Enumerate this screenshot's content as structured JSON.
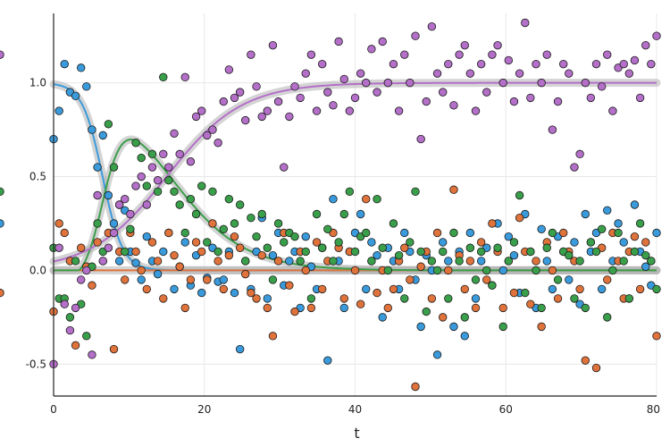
{
  "chart_data": {
    "type": "scatter",
    "xlabel": "t",
    "xlim": [
      0,
      80
    ],
    "ylim": [
      -0.67,
      1.37
    ],
    "xticks": [
      0,
      20,
      40,
      60,
      80
    ],
    "yticks": [
      -0.5,
      0.0,
      0.5,
      1.0
    ],
    "xtick_labels": [
      "0",
      "20",
      "40",
      "60",
      "80"
    ],
    "ytick_labels": [
      "-0.5",
      "0.0",
      "0.5",
      "1.0"
    ],
    "grid": true,
    "legend": "none",
    "scatter_x": [
      0.0,
      0.73,
      1.45,
      2.18,
      2.91,
      3.64,
      4.36,
      5.09,
      5.82,
      6.55,
      7.27,
      8.0,
      8.73,
      9.45,
      10.18,
      10.91,
      11.64,
      12.36,
      13.09,
      13.82,
      14.55,
      15.27,
      16.0,
      16.73,
      17.45,
      18.18,
      18.91,
      19.64,
      20.36,
      21.09,
      21.82,
      22.55,
      23.27,
      24.0,
      24.73,
      25.45,
      26.18,
      26.91,
      27.64,
      28.36,
      29.09,
      29.82,
      30.55,
      31.27,
      32.0,
      32.73,
      33.45,
      34.18,
      34.91,
      35.64,
      36.36,
      37.09,
      37.82,
      38.55,
      39.27,
      40.0,
      40.73,
      41.45,
      42.18,
      42.91,
      43.64,
      44.36,
      45.09,
      45.82,
      46.55,
      47.27,
      48.0,
      48.73,
      49.45,
      50.18,
      50.91,
      51.64,
      52.36,
      53.09,
      53.82,
      54.55,
      55.27,
      56.0,
      56.73,
      57.45,
      58.18,
      58.91,
      59.64,
      60.36,
      61.09,
      61.82,
      62.55,
      63.27,
      64.0,
      64.73,
      65.45,
      66.18,
      66.91,
      67.64,
      68.36,
      69.09,
      69.82,
      70.55,
      71.27,
      72.0,
      72.73,
      73.45,
      74.18,
      74.91,
      75.64,
      76.36,
      77.09,
      77.82,
      78.55,
      79.27,
      80.0
    ],
    "series": [
      {
        "color": "#3a9bdc",
        "fit": "decay",
        "values": [
          0.7,
          0.85,
          1.1,
          0.95,
          0.93,
          1.08,
          0.98,
          0.75,
          0.55,
          0.72,
          0.4,
          0.25,
          0.05,
          0.32,
          0.1,
          0.04,
          -0.05,
          0.18,
          0.05,
          -0.02,
          0.1,
          0.2,
          -0.1,
          0.02,
          0.15,
          -0.08,
          0.08,
          -0.12,
          -0.04,
          0.12,
          -0.06,
          -0.05,
          0.1,
          -0.12,
          -0.42,
          0.05,
          -0.1,
          0.1,
          0.28,
          -0.15,
          0.08,
          0.2,
          -0.08,
          0.05,
          0.1,
          -0.2,
          0.18,
          0.02,
          -0.1,
          0.12,
          -0.48,
          0.38,
          0.05,
          -0.2,
          0.1,
          0.2,
          0.3,
          -0.1,
          0.15,
          0.08,
          -0.25,
          0.12,
          0.05,
          -0.1,
          0.2,
          0.1,
          -0.05,
          -0.3,
          0.08,
          0.0,
          -0.45,
          0.15,
          0.05,
          -0.3,
          0.1,
          -0.35,
          0.2,
          -0.15,
          0.05,
          0.12,
          -0.08,
          0.25,
          0.0,
          0.18,
          0.08,
          -0.12,
          0.3,
          0.1,
          -0.2,
          0.22,
          0.05,
          -0.1,
          0.18,
          0.1,
          -0.05,
          0.15,
          -0.18,
          0.3,
          0.1,
          0.2,
          -0.1,
          0.32,
          0.05,
          0.25,
          0.15,
          -0.15,
          0.35,
          0.1,
          0.02,
          -0.08,
          0.2,
          0.25
        ]
      },
      {
        "color": "#e0733b",
        "fit": "zero",
        "values": [
          -0.22,
          0.25,
          0.2,
          0.05,
          -0.4,
          0.12,
          0.02,
          -0.08,
          0.15,
          0.05,
          0.2,
          -0.42,
          0.1,
          -0.05,
          0.2,
          0.1,
          0.0,
          -0.1,
          0.15,
          0.05,
          -0.15,
          0.2,
          0.08,
          0.02,
          -0.2,
          -0.05,
          0.15,
          0.1,
          -0.05,
          0.25,
          0.05,
          -0.1,
          0.08,
          0.18,
          0.12,
          -0.02,
          -0.12,
          -0.15,
          0.08,
          -0.2,
          -0.35,
          0.05,
          0.2,
          -0.08,
          -0.22,
          0.1,
          0.0,
          -0.2,
          0.15,
          -0.1,
          0.05,
          0.2,
          0.12,
          -0.15,
          0.1,
          0.0,
          -0.18,
          0.38,
          0.05,
          -0.12,
          0.0,
          -0.2,
          -0.1,
          0.05,
          0.12,
          -0.05,
          -0.62,
          0.02,
          0.1,
          -0.15,
          0.2,
          -0.25,
          0.0,
          0.43,
          0.08,
          -0.1,
          0.05,
          -0.2,
          0.15,
          -0.05,
          0.25,
          0.1,
          -0.2,
          0.05,
          -0.12,
          0.28,
          0.1,
          -0.18,
          0.05,
          -0.3,
          0.15,
          0.0,
          -0.15,
          0.2,
          0.1,
          0.05,
          -0.1,
          -0.48,
          0.15,
          -0.52,
          0.12,
          -0.05,
          0.2,
          0.05,
          -0.15,
          0.1,
          0.18,
          -0.1,
          0.15,
          0.05,
          -0.35,
          -0.12
        ]
      },
      {
        "color": "#3a9f4a",
        "fit": "bump",
        "values": [
          0.12,
          -0.15,
          -0.15,
          -0.25,
          0.05,
          -0.18,
          -0.35,
          0.02,
          0.25,
          0.1,
          0.78,
          0.55,
          0.35,
          0.1,
          0.22,
          0.68,
          0.6,
          0.45,
          0.62,
          0.42,
          1.03,
          0.48,
          0.42,
          0.35,
          0.2,
          0.38,
          0.3,
          0.45,
          0.15,
          0.42,
          0.1,
          0.22,
          0.38,
          0.25,
          0.35,
          0.05,
          0.28,
          0.18,
          0.3,
          0.12,
          -0.05,
          0.25,
          0.15,
          0.2,
          0.18,
          0.05,
          0.1,
          -0.15,
          0.3,
          0.12,
          0.22,
          0.05,
          0.15,
          0.3,
          0.42,
          0.1,
          0.18,
          0.2,
          0.05,
          0.38,
          0.12,
          0.0,
          0.25,
          0.08,
          -0.15,
          0.15,
          0.42,
          0.1,
          -0.22,
          0.05,
          0.0,
          0.1,
          -0.15,
          0.2,
          0.05,
          -0.25,
          0.12,
          -0.05,
          0.1,
          0.0,
          -0.08,
          0.12,
          -0.3,
          0.05,
          0.15,
          0.4,
          -0.12,
          0.1,
          0.0,
          -0.2,
          0.12,
          0.2,
          -0.05,
          0.1,
          0.08,
          -0.15,
          0.05,
          -0.2,
          0.15,
          0.1,
          0.22,
          -0.25,
          0.0,
          0.2,
          0.05,
          -0.15,
          0.1,
          0.25,
          0.08,
          0.05,
          -0.1,
          0.42
        ]
      },
      {
        "color": "#b46fc9",
        "fit": "sigmoid",
        "values": [
          -0.5,
          0.12,
          -0.18,
          -0.32,
          -0.2,
          -0.05,
          0.0,
          -0.45,
          0.4,
          0.05,
          0.12,
          0.2,
          0.35,
          0.38,
          0.3,
          0.45,
          0.5,
          0.35,
          0.55,
          0.48,
          0.62,
          0.55,
          0.73,
          0.62,
          1.03,
          0.58,
          0.82,
          0.85,
          0.72,
          0.75,
          0.68,
          0.9,
          1.07,
          0.92,
          0.95,
          0.8,
          1.15,
          0.98,
          0.82,
          0.85,
          1.2,
          0.9,
          0.55,
          0.82,
          0.98,
          0.92,
          1.05,
          1.15,
          0.85,
          1.1,
          0.95,
          0.88,
          1.22,
          1.02,
          0.85,
          0.92,
          1.05,
          1.0,
          1.18,
          0.95,
          1.22,
          1.0,
          1.1,
          0.85,
          1.15,
          1.0,
          1.25,
          0.7,
          0.9,
          1.3,
          1.05,
          0.95,
          1.1,
          0.88,
          1.15,
          1.2,
          1.05,
          0.85,
          1.1,
          0.95,
          1.15,
          1.2,
          1.0,
          1.12,
          0.9,
          1.05,
          1.32,
          0.92,
          1.1,
          1.0,
          1.15,
          0.75,
          0.9,
          1.1,
          1.05,
          0.55,
          0.62,
          1.0,
          0.92,
          1.1,
          0.98,
          1.15,
          0.85,
          1.08,
          1.1,
          1.05,
          1.12,
          0.92,
          1.2,
          1.1,
          1.25,
          1.15
        ]
      }
    ]
  }
}
